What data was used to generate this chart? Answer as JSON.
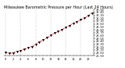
{
  "title": "Milwaukee Barometric Pressure per Hour (Last 24 Hours)",
  "x_values": [
    0,
    1,
    2,
    3,
    4,
    5,
    6,
    7,
    8,
    9,
    10,
    11,
    12,
    13,
    14,
    15,
    16,
    17,
    18,
    19,
    20,
    21,
    22,
    23
  ],
  "y_values": [
    29.02,
    28.98,
    29.0,
    29.05,
    29.08,
    29.12,
    29.18,
    29.22,
    29.3,
    29.38,
    29.44,
    29.52,
    29.6,
    29.68,
    29.74,
    29.8,
    29.88,
    29.95,
    30.02,
    30.08,
    30.14,
    30.2,
    30.28,
    30.38
  ],
  "line_color": "#ff0000",
  "marker_color": "#000000",
  "background_color": "#ffffff",
  "grid_color": "#999999",
  "ylim": [
    28.9,
    30.5
  ],
  "yticks": [
    28.9,
    29.0,
    29.1,
    29.2,
    29.3,
    29.4,
    29.5,
    29.6,
    29.7,
    29.8,
    29.9,
    30.0,
    30.1,
    30.2,
    30.3,
    30.4,
    30.5
  ],
  "ytick_labels": [
    "28.90",
    "29.00",
    "29.10",
    "29.20",
    "29.30",
    "29.40",
    "29.50",
    "29.60",
    "29.70",
    "29.80",
    "29.90",
    "30.00",
    "30.10",
    "30.20",
    "30.30",
    "30.40",
    "30.50"
  ],
  "title_fontsize": 3.5,
  "tick_fontsize": 2.5,
  "marker_size": 1.8,
  "line_width": 0.5,
  "grid_linewidth": 0.35
}
